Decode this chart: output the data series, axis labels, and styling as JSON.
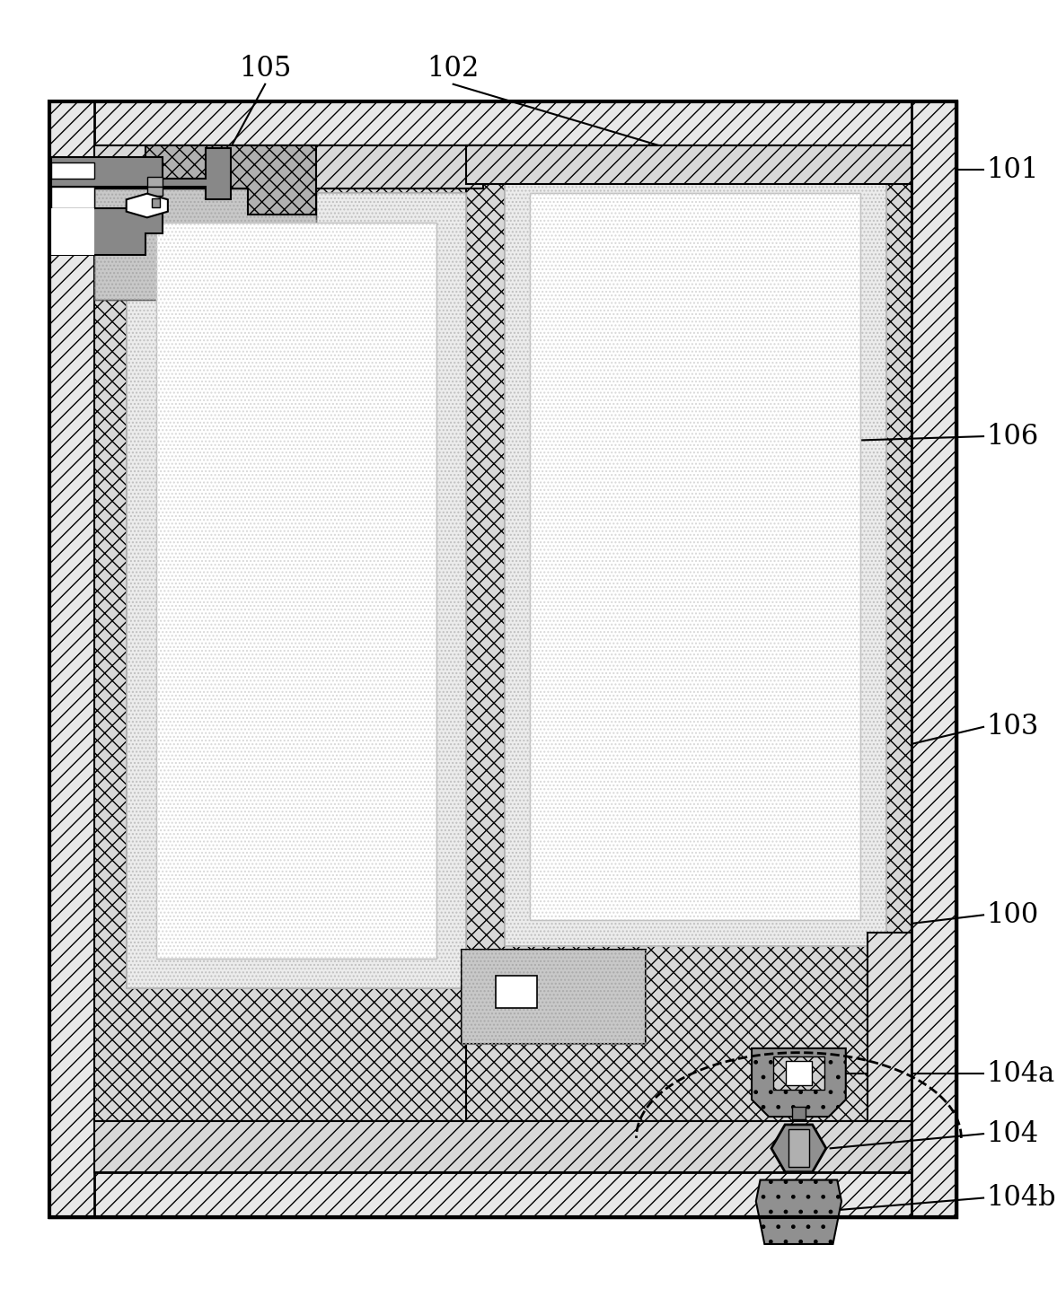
{
  "bg": "#ffffff",
  "bk": "#000000",
  "wh": "#ffffff",
  "lg": "#e0e0e0",
  "mg": "#b0b0b0",
  "dg": "#787878",
  "vdg": "#505050",
  "dot_fill": "#e8e8e8",
  "dot_fill2": "#d8d8d8",
  "xhatch_fill": "#d0d0d0",
  "frame_fill": "#e0e0e0",
  "fs": 22,
  "lbl_100": "100",
  "lbl_101": "101",
  "lbl_102": "102",
  "lbl_103": "103",
  "lbl_104": "104",
  "lbl_104a": "104a",
  "lbl_104b": "104b",
  "lbl_105": "105",
  "lbl_106": "106"
}
